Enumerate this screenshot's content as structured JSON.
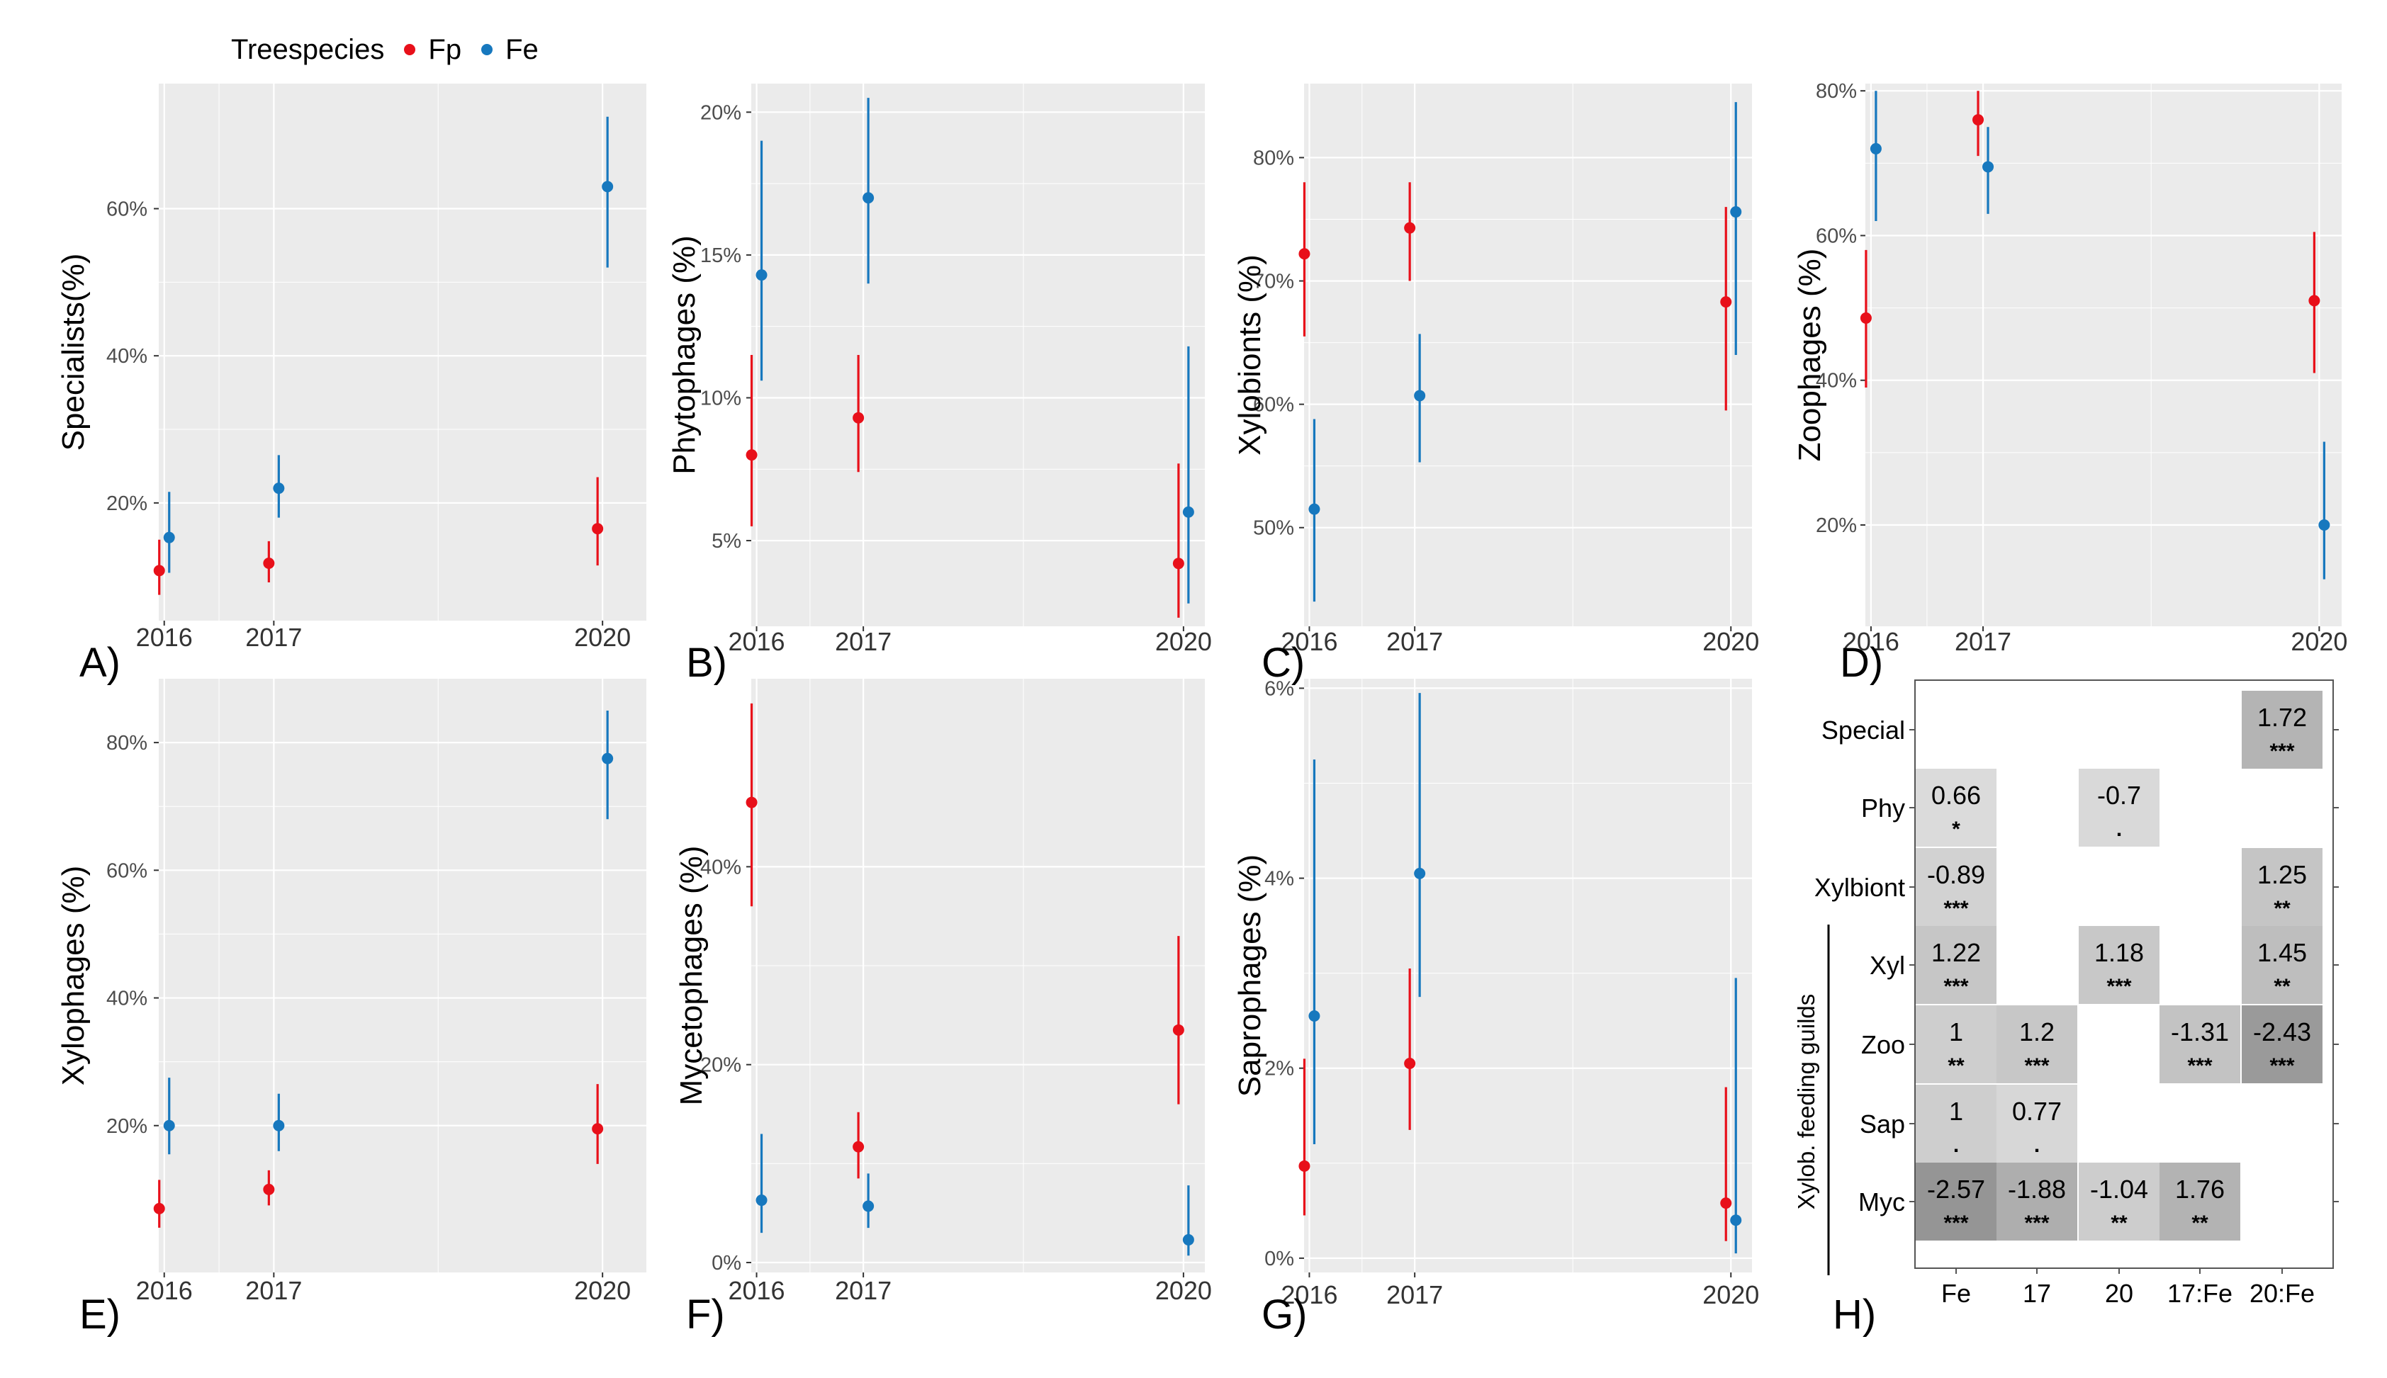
{
  "legend": {
    "title": "Treespecies",
    "items": [
      {
        "label": "Fp",
        "color": "#E8101A"
      },
      {
        "label": "Fe",
        "color": "#1778BE"
      }
    ]
  },
  "colors": {
    "panel_bg": "#EBEBEB",
    "grid": "#FFFFFF",
    "Fp": "#E8101A",
    "Fe": "#1778BE"
  },
  "chart_data": [
    {
      "type": "scatter",
      "panel": "A)",
      "ylabel": "Specialists(%)",
      "x": [
        2016,
        2017,
        2020
      ],
      "xlim": [
        2015.95,
        2020.4
      ],
      "ylim": [
        4,
        77
      ],
      "yticks": [
        20,
        40,
        60
      ],
      "ytick_labels": [
        "20%",
        "40%",
        "60%"
      ],
      "series": [
        {
          "name": "Fp",
          "y": [
            10.8,
            11.8,
            16.5
          ],
          "lo": [
            7.5,
            9.2,
            11.5
          ],
          "hi": [
            15.0,
            14.8,
            23.5
          ]
        },
        {
          "name": "Fe",
          "y": [
            15.3,
            22.0,
            63.0
          ],
          "lo": [
            10.5,
            18.0,
            52.0
          ],
          "hi": [
            21.5,
            26.5,
            72.5
          ]
        }
      ]
    },
    {
      "type": "scatter",
      "panel": "B)",
      "ylabel": "Phytophages (%)",
      "x": [
        2016,
        2017,
        2020
      ],
      "xlim": [
        2015.95,
        2020.2
      ],
      "ylim": [
        2,
        21
      ],
      "yticks": [
        5,
        10,
        15,
        20
      ],
      "ytick_labels": [
        "5%",
        "10%",
        "15%",
        "20%"
      ],
      "series": [
        {
          "name": "Fp",
          "y": [
            8.0,
            9.3,
            4.2
          ],
          "lo": [
            5.5,
            7.4,
            2.3
          ],
          "hi": [
            11.5,
            11.5,
            7.7
          ]
        },
        {
          "name": "Fe",
          "y": [
            14.3,
            17.0,
            6.0
          ],
          "lo": [
            10.6,
            14.0,
            2.8
          ],
          "hi": [
            19.0,
            20.5,
            11.8
          ]
        }
      ]
    },
    {
      "type": "scatter",
      "panel": "C)",
      "ylabel": "Xylobionts (%)",
      "x": [
        2016,
        2017,
        2020
      ],
      "xlim": [
        2015.95,
        2020.2
      ],
      "ylim": [
        42,
        86
      ],
      "yticks": [
        50,
        60,
        70,
        80
      ],
      "ytick_labels": [
        "50%",
        "60%",
        "70%",
        "80%"
      ],
      "series": [
        {
          "name": "Fp",
          "y": [
            72.2,
            74.3,
            68.3
          ],
          "lo": [
            65.5,
            70.0,
            59.5
          ],
          "hi": [
            78.0,
            78.0,
            76.0
          ]
        },
        {
          "name": "Fe",
          "y": [
            51.5,
            60.7,
            75.6
          ],
          "lo": [
            44.0,
            55.3,
            64.0
          ],
          "hi": [
            58.8,
            65.7,
            84.5
          ]
        }
      ]
    },
    {
      "type": "scatter",
      "panel": "D)",
      "ylabel": "Zoophages (%)",
      "x": [
        2016,
        2017,
        2020
      ],
      "xlim": [
        2015.95,
        2020.2
      ],
      "ylim": [
        6,
        81
      ],
      "yticks": [
        20,
        40,
        60,
        80
      ],
      "ytick_labels": [
        "20%",
        "40%",
        "60%",
        "80%"
      ],
      "series": [
        {
          "name": "Fp",
          "y": [
            48.6,
            76.0,
            51.0
          ],
          "lo": [
            39.0,
            71.0,
            41.0
          ],
          "hi": [
            58.0,
            80.0,
            60.5
          ]
        },
        {
          "name": "Fe",
          "y": [
            72.0,
            69.5,
            20.0
          ],
          "lo": [
            62.0,
            63.0,
            12.5
          ],
          "hi": [
            80.0,
            75.0,
            31.5
          ]
        }
      ]
    },
    {
      "type": "scatter",
      "panel": "E)",
      "ylabel": "Xylophages (%)",
      "x": [
        2016,
        2017,
        2020
      ],
      "xlim": [
        2015.95,
        2020.4
      ],
      "ylim": [
        -3,
        90
      ],
      "yticks": [
        20,
        40,
        60,
        80
      ],
      "ytick_labels": [
        "20%",
        "40%",
        "60%",
        "80%"
      ],
      "series": [
        {
          "name": "Fp",
          "y": [
            7.0,
            10.0,
            19.5
          ],
          "lo": [
            4.0,
            7.5,
            14.0
          ],
          "hi": [
            11.5,
            13.0,
            26.5
          ]
        },
        {
          "name": "Fe",
          "y": [
            20.0,
            20.0,
            77.5
          ],
          "lo": [
            15.5,
            16.0,
            68.0
          ],
          "hi": [
            27.5,
            25.0,
            85.0
          ]
        }
      ]
    },
    {
      "type": "scatter",
      "panel": "F)",
      "ylabel": "Mycetophages (%)",
      "x": [
        2016,
        2017,
        2020
      ],
      "xlim": [
        2015.95,
        2020.2
      ],
      "ylim": [
        -1,
        59
      ],
      "yticks": [
        0,
        20,
        40
      ],
      "ytick_labels": [
        "0%",
        "20%",
        "40%"
      ],
      "series": [
        {
          "name": "Fp",
          "y": [
            46.5,
            11.7,
            23.5
          ],
          "lo": [
            36.0,
            8.5,
            16.0
          ],
          "hi": [
            56.5,
            15.2,
            33.0
          ]
        },
        {
          "name": "Fe",
          "y": [
            6.3,
            5.7,
            2.3
          ],
          "lo": [
            3.0,
            3.5,
            0.7
          ],
          "hi": [
            13.0,
            9.0,
            7.8
          ]
        }
      ]
    },
    {
      "type": "scatter",
      "panel": "G)",
      "ylabel": "Saprophages (%)",
      "x": [
        2016,
        2017,
        2020
      ],
      "xlim": [
        2015.95,
        2020.2
      ],
      "ylim": [
        -0.15,
        6.1
      ],
      "yticks": [
        0,
        2,
        4,
        6
      ],
      "ytick_labels": [
        "0%",
        "2%",
        "4%",
        "6%"
      ],
      "series": [
        {
          "name": "Fp",
          "y": [
            0.97,
            2.05,
            0.58
          ],
          "lo": [
            0.45,
            1.35,
            0.18
          ],
          "hi": [
            2.1,
            3.05,
            1.8
          ]
        },
        {
          "name": "Fe",
          "y": [
            2.55,
            4.05,
            0.4
          ],
          "lo": [
            1.2,
            2.75,
            0.05
          ],
          "hi": [
            5.25,
            5.95,
            2.95
          ]
        }
      ]
    },
    {
      "type": "heatmap",
      "panel": "H)",
      "columns": [
        "Fe",
        "17",
        "20",
        "17:Fe",
        "20:Fe"
      ],
      "rows": [
        "Special",
        "Phy",
        "Xylbiont",
        "Xyl",
        "Zoo",
        "Sap",
        "Myc"
      ],
      "group_label": "Xylob. feeding guilds",
      "cells": [
        {
          "row": "Special",
          "col": "20:Fe",
          "value": "1.72",
          "sig": "***"
        },
        {
          "row": "Phy",
          "col": "Fe",
          "value": "0.66",
          "sig": "*"
        },
        {
          "row": "Phy",
          "col": "20",
          "value": "-0.7",
          "sig": "."
        },
        {
          "row": "Xylbiont",
          "col": "Fe",
          "value": "-0.89",
          "sig": "***"
        },
        {
          "row": "Xylbiont",
          "col": "20:Fe",
          "value": "1.25",
          "sig": "**"
        },
        {
          "row": "Xyl",
          "col": "Fe",
          "value": "1.22",
          "sig": "***"
        },
        {
          "row": "Xyl",
          "col": "20",
          "value": "1.18",
          "sig": "***"
        },
        {
          "row": "Xyl",
          "col": "20:Fe",
          "value": "1.45",
          "sig": "**"
        },
        {
          "row": "Zoo",
          "col": "Fe",
          "value": "1",
          "sig": "**"
        },
        {
          "row": "Zoo",
          "col": "17",
          "value": "1.2",
          "sig": "***"
        },
        {
          "row": "Zoo",
          "col": "17:Fe",
          "value": "-1.31",
          "sig": "***"
        },
        {
          "row": "Zoo",
          "col": "20:Fe",
          "value": "-2.43",
          "sig": "***"
        },
        {
          "row": "Sap",
          "col": "Fe",
          "value": "1",
          "sig": "."
        },
        {
          "row": "Sap",
          "col": "17",
          "value": "0.77",
          "sig": "."
        },
        {
          "row": "Myc",
          "col": "Fe",
          "value": "-2.57",
          "sig": "***"
        },
        {
          "row": "Myc",
          "col": "17",
          "value": "-1.88",
          "sig": "***"
        },
        {
          "row": "Myc",
          "col": "20",
          "value": "-1.04",
          "sig": "**"
        },
        {
          "row": "Myc",
          "col": "17:Fe",
          "value": "1.76",
          "sig": "**"
        }
      ]
    }
  ]
}
